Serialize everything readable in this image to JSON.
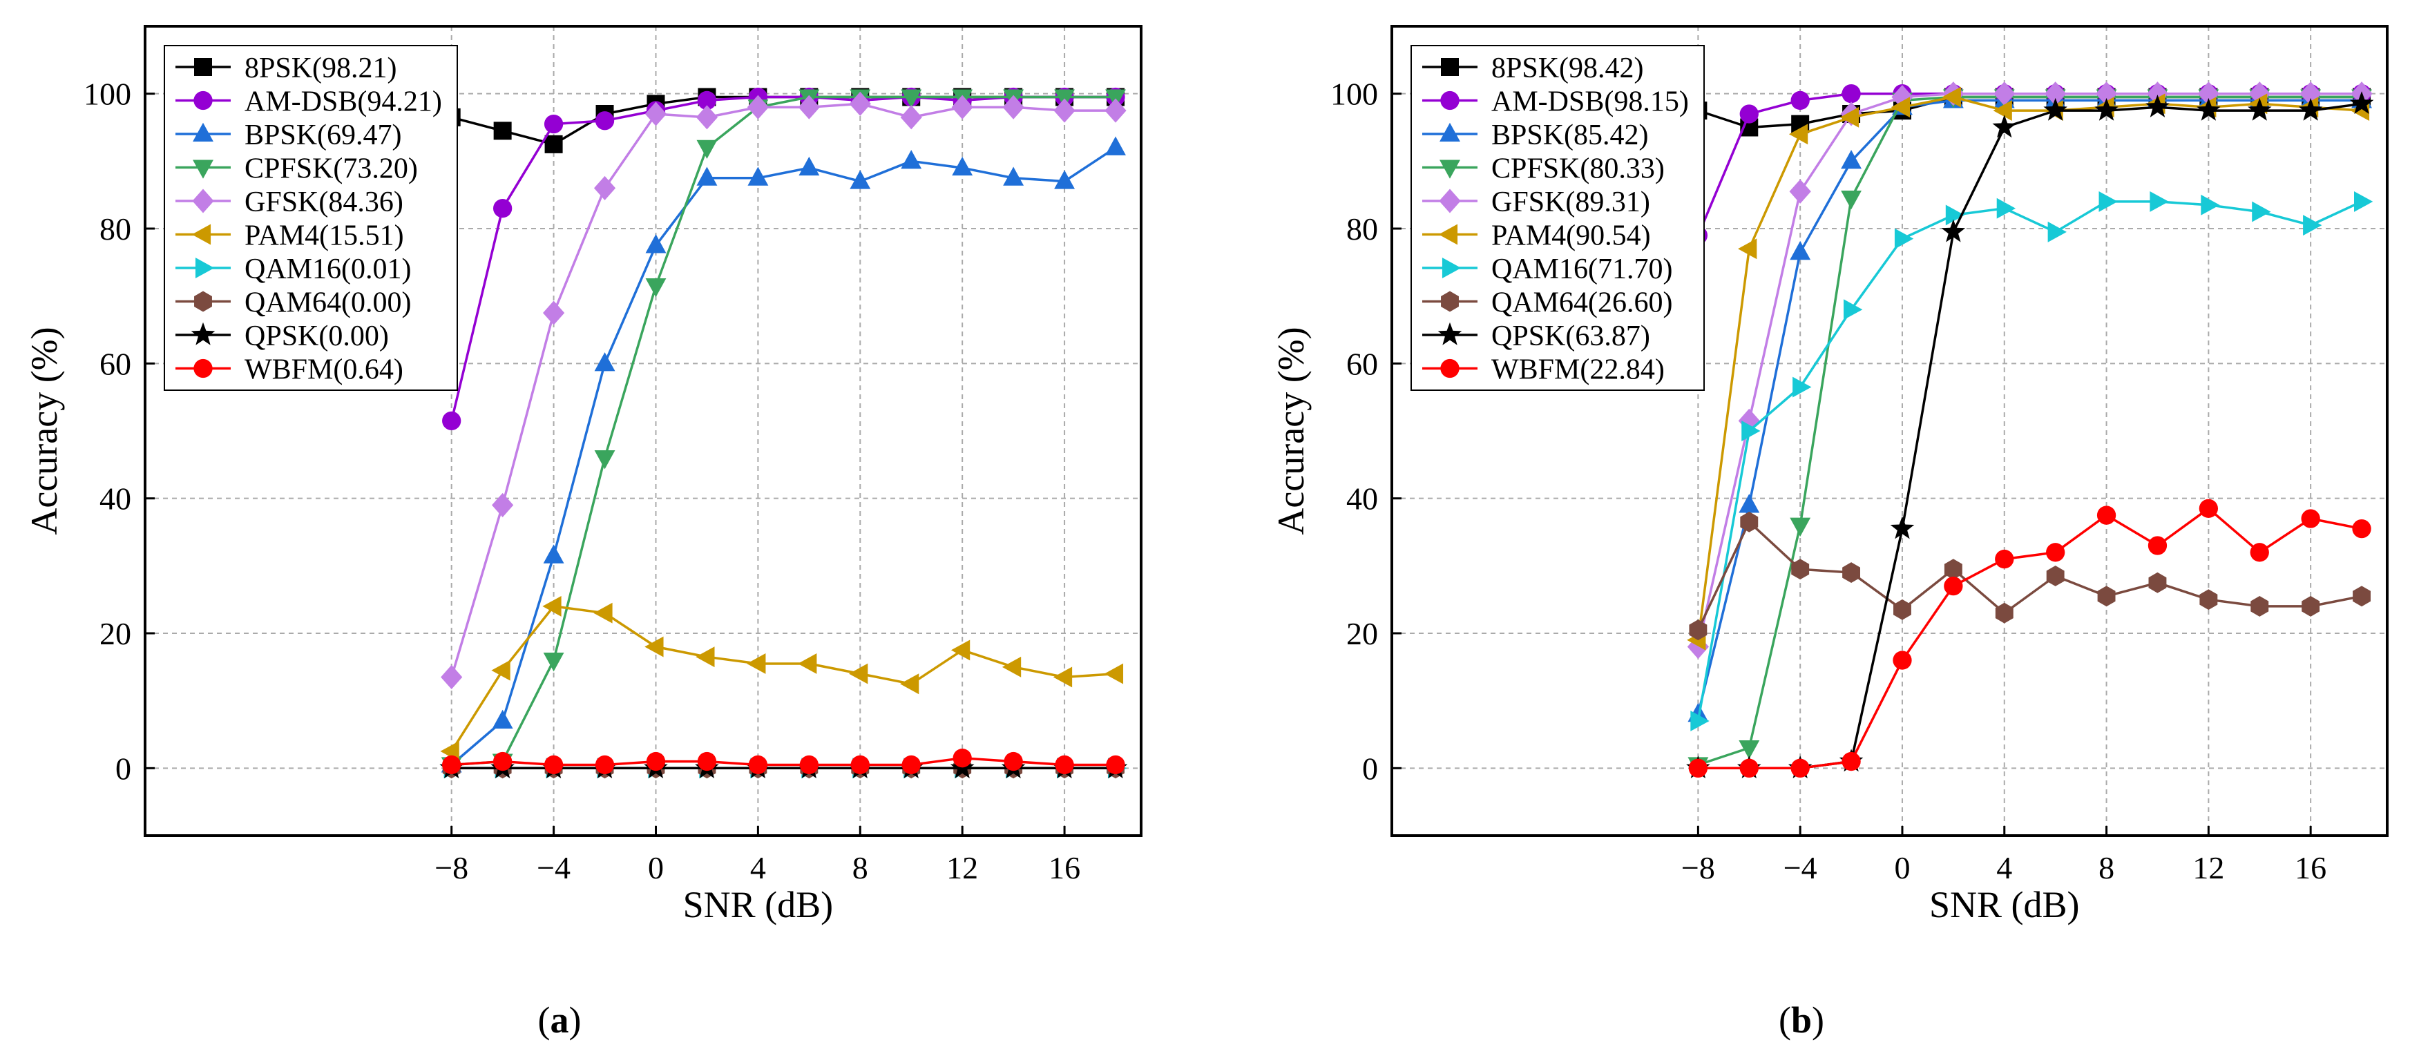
{
  "chart_data": [
    {
      "type": "line",
      "panel_label": "a",
      "xlabel": "SNR (dB)",
      "ylabel": "Accuracy (%)",
      "xlim": [
        -20,
        19
      ],
      "ylim": [
        -10,
        110
      ],
      "xticks": [
        -8,
        -4,
        0,
        4,
        8,
        12,
        16
      ],
      "xtick_labels": [
        "−8",
        "−4",
        "0",
        "4",
        "8",
        "12",
        "16"
      ],
      "yticks": [
        0,
        20,
        40,
        60,
        80,
        100
      ],
      "ytick_labels": [
        "0",
        "20",
        "40",
        "60",
        "80",
        "100"
      ],
      "grid": true,
      "legend_position": "top-left",
      "x": [
        -8,
        -6,
        -4,
        -2,
        0,
        2,
        4,
        6,
        8,
        10,
        12,
        14,
        16,
        18
      ],
      "series": [
        {
          "name": "8PSK",
          "legend": "8PSK(98.21)",
          "color": "#000000",
          "marker": "square",
          "values": [
            96.5,
            94.5,
            92.5,
            97,
            98.5,
            99.5,
            99.5,
            99.5,
            99.5,
            99.5,
            99.5,
            99.5,
            99.5,
            99.5
          ]
        },
        {
          "name": "AM-DSB",
          "legend": "AM-DSB(94.21)",
          "color": "#9400D3",
          "marker": "circle",
          "values": [
            51.5,
            83,
            95.5,
            96,
            97.5,
            99,
            99.5,
            99.5,
            99,
            99.5,
            99,
            99.5,
            99.5,
            99.5
          ]
        },
        {
          "name": "BPSK",
          "legend": "BPSK(69.47)",
          "color": "#1f6fd8",
          "marker": "triangle-up",
          "values": [
            0.5,
            7,
            31.5,
            60,
            77.5,
            87.5,
            87.5,
            89,
            87,
            90,
            89,
            87.5,
            87,
            92
          ]
        },
        {
          "name": "CPFSK",
          "legend": "CPFSK(73.20)",
          "color": "#3aa55d",
          "marker": "triangle-down",
          "values": [
            0.5,
            1,
            16,
            46,
            71.5,
            92,
            98,
            99.5,
            99.5,
            99.5,
            99.5,
            99.5,
            99.5,
            99.5
          ]
        },
        {
          "name": "GFSK",
          "legend": "GFSK(84.36)",
          "color": "#c27ee6",
          "marker": "diamond",
          "values": [
            13.5,
            39,
            67.5,
            86,
            97,
            96.5,
            98,
            98,
            98.5,
            96.5,
            98,
            98,
            97.5,
            97.5
          ]
        },
        {
          "name": "PAM4",
          "legend": "PAM4(15.51)",
          "color": "#cc9900",
          "marker": "triangle-left",
          "values": [
            2.5,
            14.5,
            24,
            23,
            18,
            16.5,
            15.5,
            15.5,
            14,
            12.5,
            17.5,
            15,
            13.5,
            14
          ]
        },
        {
          "name": "QAM16",
          "legend": "QAM16(0.01)",
          "color": "#17c9d6",
          "marker": "triangle-right",
          "values": [
            0,
            0,
            0,
            0,
            0,
            0,
            0,
            0,
            0,
            0,
            0,
            0,
            0,
            0
          ]
        },
        {
          "name": "QAM64",
          "legend": "QAM64(0.00)",
          "color": "#7b4a3f",
          "marker": "hexagon",
          "values": [
            0,
            0,
            0,
            0,
            0,
            0,
            0,
            0,
            0,
            0,
            0,
            0,
            0,
            0
          ]
        },
        {
          "name": "QPSK",
          "legend": "QPSK(0.00)",
          "color": "#000000",
          "marker": "star",
          "values": [
            0,
            0,
            0,
            0,
            0,
            0,
            0,
            0,
            0,
            0,
            0,
            0,
            0,
            0
          ]
        },
        {
          "name": "WBFM",
          "legend": "WBFM(0.64)",
          "color": "#ff0000",
          "marker": "circle",
          "values": [
            0.5,
            1,
            0.5,
            0.5,
            1,
            1,
            0.5,
            0.5,
            0.5,
            0.5,
            1.5,
            1,
            0.5,
            0.5
          ]
        }
      ]
    },
    {
      "type": "line",
      "panel_label": "b",
      "xlabel": "SNR (dB)",
      "ylabel": "Accuracy (%)",
      "xlim": [
        -20,
        19
      ],
      "ylim": [
        -10,
        110
      ],
      "xticks": [
        -8,
        -4,
        0,
        4,
        8,
        12,
        16
      ],
      "xtick_labels": [
        "−8",
        "−4",
        "0",
        "4",
        "8",
        "12",
        "16"
      ],
      "yticks": [
        0,
        20,
        40,
        60,
        80,
        100
      ],
      "ytick_labels": [
        "0",
        "20",
        "40",
        "60",
        "80",
        "100"
      ],
      "grid": true,
      "legend_position": "top-left",
      "x": [
        -8,
        -6,
        -4,
        -2,
        0,
        2,
        4,
        6,
        8,
        10,
        12,
        14,
        16,
        18
      ],
      "series": [
        {
          "name": "8PSK",
          "legend": "8PSK(98.42)",
          "color": "#000000",
          "marker": "square",
          "values": [
            97.5,
            95,
            95.5,
            97,
            97.5,
            99.5,
            99.5,
            99.5,
            99.5,
            99.5,
            99.5,
            99.5,
            99.5,
            99.5
          ]
        },
        {
          "name": "AM-DSB",
          "legend": "AM-DSB(98.15)",
          "color": "#9400D3",
          "marker": "circle",
          "values": [
            79,
            97,
            99,
            100,
            100,
            100,
            100,
            100,
            100,
            100,
            100,
            100,
            100,
            100
          ]
        },
        {
          "name": "BPSK",
          "legend": "BPSK(85.42)",
          "color": "#1f6fd8",
          "marker": "triangle-up",
          "values": [
            8,
            39,
            76.5,
            90,
            98,
            99,
            99,
            99,
            99,
            99,
            99,
            99,
            99,
            99
          ]
        },
        {
          "name": "CPFSK",
          "legend": "CPFSK(80.33)",
          "color": "#3aa55d",
          "marker": "triangle-down",
          "values": [
            0.5,
            3,
            36,
            84.5,
            99,
            99.5,
            99.5,
            99.5,
            99.5,
            99.5,
            99.5,
            99.5,
            99.5,
            99.5
          ]
        },
        {
          "name": "GFSK",
          "legend": "GFSK(89.31)",
          "color": "#c27ee6",
          "marker": "diamond",
          "values": [
            18,
            51.5,
            85.5,
            97,
            99.5,
            100,
            100,
            100,
            100,
            100,
            100,
            100,
            100,
            100
          ]
        },
        {
          "name": "PAM4",
          "legend": "PAM4(90.54)",
          "color": "#cc9900",
          "marker": "triangle-left",
          "values": [
            19,
            77,
            94,
            96.5,
            98,
            99.5,
            97.5,
            97.5,
            98,
            98.5,
            98,
            98.5,
            98,
            97.5
          ]
        },
        {
          "name": "QAM16",
          "legend": "QAM16(71.70)",
          "color": "#17c9d6",
          "marker": "triangle-right",
          "values": [
            7,
            50,
            56.5,
            68,
            78.5,
            82,
            83,
            79.5,
            84,
            84,
            83.5,
            82.5,
            80.5,
            84
          ]
        },
        {
          "name": "QAM64",
          "legend": "QAM64(26.60)",
          "color": "#7b4a3f",
          "marker": "hexagon",
          "values": [
            20.5,
            36.5,
            29.5,
            29,
            23.5,
            29.5,
            23,
            28.5,
            25.5,
            27.5,
            25,
            24,
            24,
            25.5
          ]
        },
        {
          "name": "QPSK",
          "legend": "QPSK(63.87)",
          "color": "#000000",
          "marker": "star",
          "values": [
            0,
            0,
            0,
            1,
            35.5,
            79.5,
            95,
            97.5,
            97.5,
            98,
            97.5,
            97.5,
            97.5,
            98.5
          ]
        },
        {
          "name": "WBFM",
          "legend": "WBFM(22.84)",
          "color": "#ff0000",
          "marker": "circle",
          "values": [
            0,
            0,
            0,
            1,
            16,
            27,
            31,
            32,
            37.5,
            33,
            38.5,
            32,
            37,
            35.5
          ]
        }
      ]
    }
  ]
}
